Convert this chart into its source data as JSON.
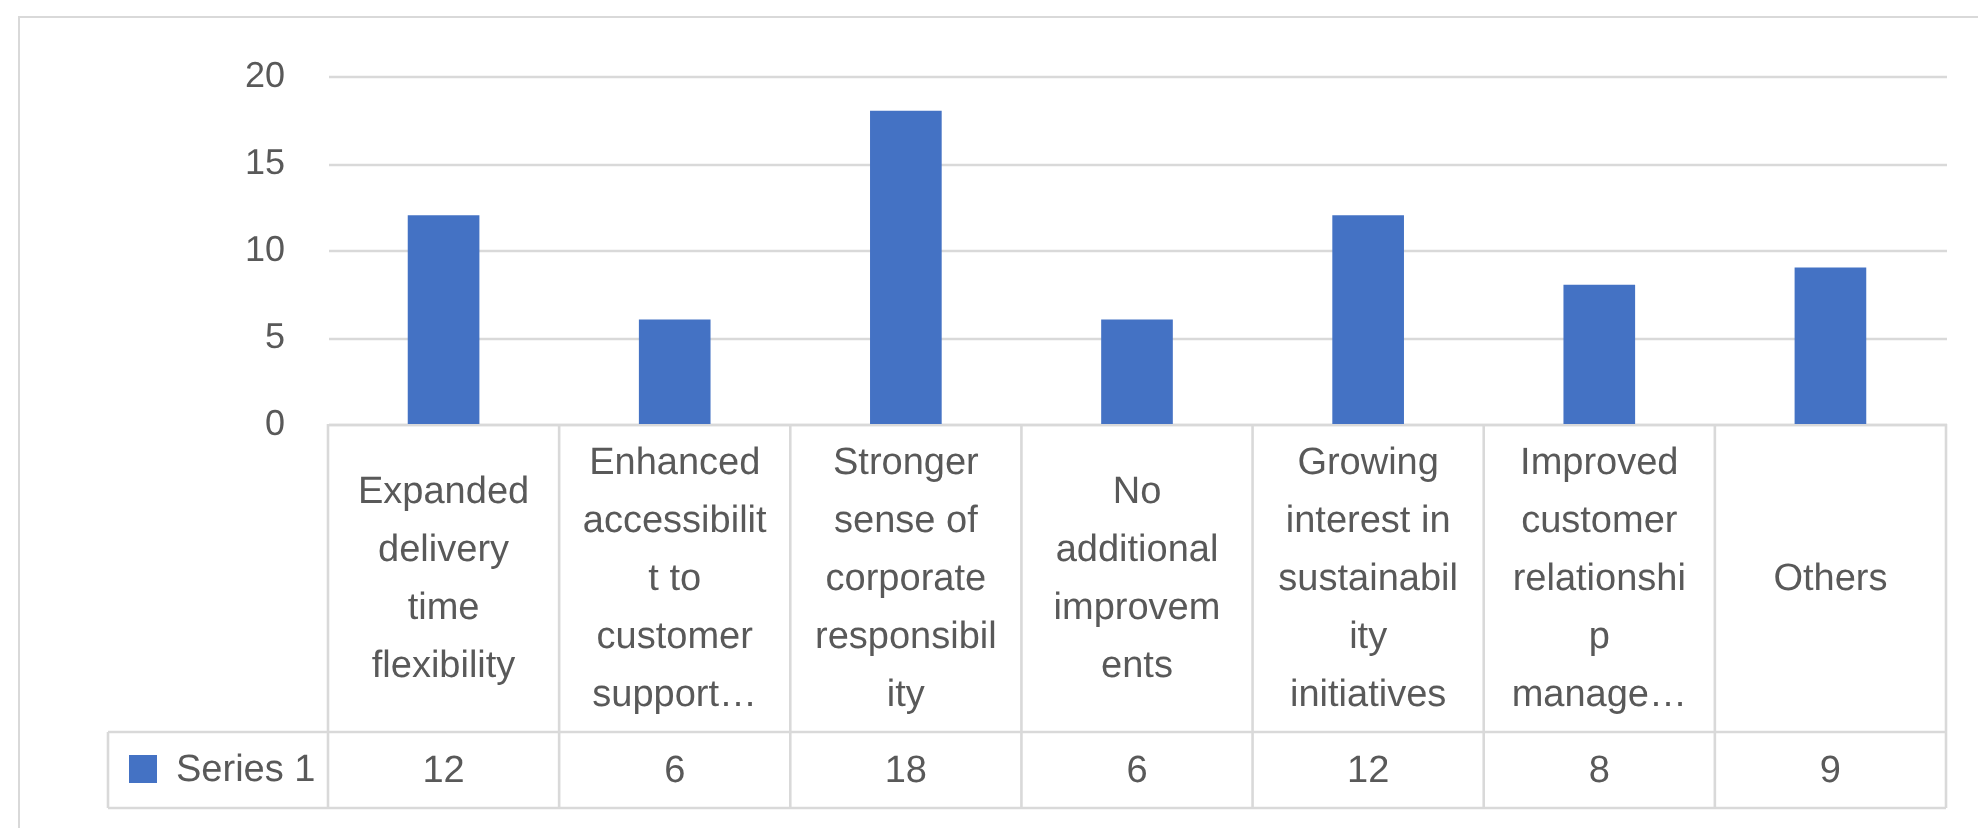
{
  "chart_data": {
    "type": "bar",
    "categories": [
      "Expanded\ndelivery\ntime\nflexibility",
      "Enhanced\naccessibilit\nt to\ncustomer\nsupport…",
      "Stronger\nsense of\ncorporate\nresponsibil\nity",
      "No\nadditional\nimprovem\nents",
      "Growing\ninterest in\nsustainabil\nity\ninitiatives",
      "Improved\ncustomer\nrelationshi\np\nmanage…",
      "Others"
    ],
    "series": [
      {
        "name": "Series 1",
        "color": "#4472c4",
        "values": [
          12,
          6,
          18,
          6,
          12,
          8,
          9
        ]
      }
    ],
    "ylim": [
      0,
      20
    ],
    "yticks": [
      0,
      5,
      10,
      15,
      20
    ],
    "grid": "y",
    "legend": "bottom left",
    "data_labels": true
  }
}
